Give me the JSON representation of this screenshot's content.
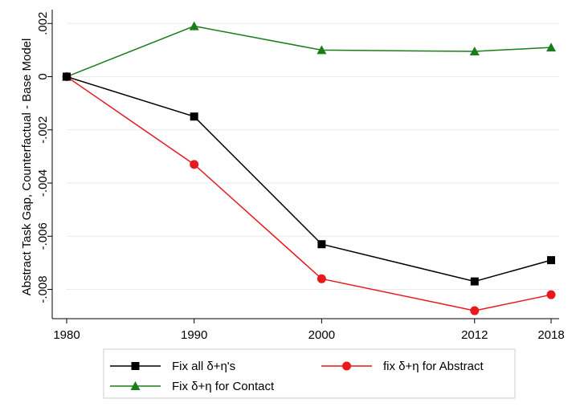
{
  "chart_data": {
    "type": "line",
    "title": "",
    "xlabel": "",
    "ylabel": "Abstract Task Gap, Counterfactual - Base Model",
    "x": [
      1980,
      1990,
      2000,
      2012,
      2018
    ],
    "x_ticks": [
      1980,
      1990,
      2000,
      2012,
      2018
    ],
    "x_tick_labels": [
      "1980",
      "1990",
      "2000",
      "2012",
      "2018"
    ],
    "xlim": [
      1980,
      2018
    ],
    "ylim": [
      -0.0091,
      0.0024
    ],
    "y_ticks": [
      0.002,
      0,
      -0.002,
      -0.004,
      -0.006,
      -0.008
    ],
    "y_tick_labels": [
      ".002",
      "0",
      "-.002",
      "-.004",
      "-.006",
      "-.008"
    ],
    "grid": true,
    "legend_position": "bottom",
    "series": [
      {
        "name": "Fix all δ+η's",
        "color": "#000000",
        "marker": "square",
        "values": [
          0,
          -0.0015,
          -0.0063,
          -0.0077,
          -0.0069
        ]
      },
      {
        "name": "fix δ+η for Abstract",
        "color": "#e8191c",
        "marker": "circle",
        "values": [
          0,
          -0.0033,
          -0.0076,
          -0.0088,
          -0.0082
        ]
      },
      {
        "name": "Fix δ+η for Contact",
        "color": "#1a7d1a",
        "marker": "triangle",
        "values": [
          0,
          0.0019,
          0.001,
          0.00095,
          0.0011
        ]
      }
    ]
  }
}
